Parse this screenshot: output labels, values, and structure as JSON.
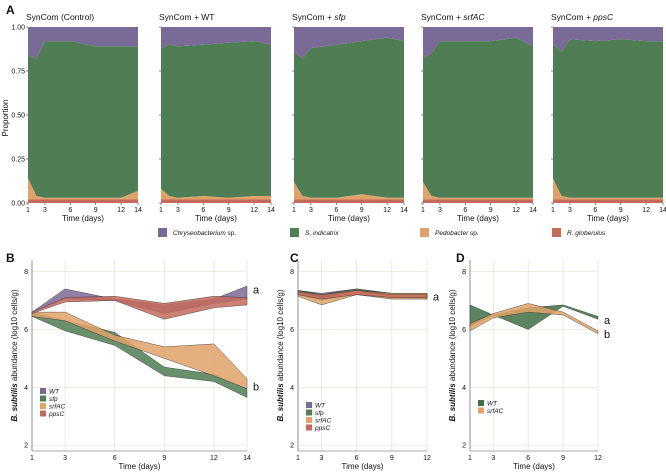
{
  "chart_data": [
    {
      "type": "area",
      "stacked": true,
      "panel_label": "A",
      "facets": [
        {
          "title_prefix": "SynCom ",
          "title_strain": "(Control)",
          "title_italic": false,
          "series": {
            "R. globerulus": [
              0.02,
              0.02,
              0.02,
              0.02,
              0.02,
              0.02,
              0.02
            ],
            "Pedobacter sp.": [
              0.12,
              0.02,
              0.01,
              0.01,
              0.01,
              0.01,
              0.05
            ],
            "S. indicatrix": [
              0.7,
              0.78,
              0.89,
              0.89,
              0.86,
              0.86,
              0.82
            ],
            "Chryseobacterium sp.": [
              0.16,
              0.18,
              0.08,
              0.08,
              0.11,
              0.11,
              0.11
            ]
          }
        },
        {
          "title_prefix": "SynCom + ",
          "title_strain": "WT",
          "title_italic": false,
          "series": {
            "R. globerulus": [
              0.02,
              0.02,
              0.02,
              0.02,
              0.02,
              0.02,
              0.02
            ],
            "Pedobacter sp.": [
              0.06,
              0.02,
              0.01,
              0.02,
              0.01,
              0.02,
              0.02
            ],
            "S. indicatrix": [
              0.8,
              0.86,
              0.86,
              0.86,
              0.88,
              0.88,
              0.86
            ],
            "Chryseobacterium sp.": [
              0.12,
              0.1,
              0.11,
              0.1,
              0.09,
              0.08,
              0.1
            ]
          }
        },
        {
          "title_prefix": "SynCom + ",
          "title_strain": "sfp",
          "title_italic": true,
          "series": {
            "R. globerulus": [
              0.02,
              0.02,
              0.02,
              0.02,
              0.02,
              0.02,
              0.02
            ],
            "Pedobacter sp.": [
              0.1,
              0.02,
              0.01,
              0.01,
              0.03,
              0.01,
              0.01
            ],
            "S. indicatrix": [
              0.74,
              0.78,
              0.85,
              0.87,
              0.87,
              0.91,
              0.89
            ],
            "Chryseobacterium sp.": [
              0.14,
              0.18,
              0.12,
              0.1,
              0.08,
              0.06,
              0.08
            ]
          }
        },
        {
          "title_prefix": "SynCom + ",
          "title_strain": "srfAC",
          "title_italic": true,
          "series": {
            "R. globerulus": [
              0.02,
              0.02,
              0.02,
              0.02,
              0.02,
              0.02,
              0.02
            ],
            "Pedobacter sp.": [
              0.1,
              0.02,
              0.01,
              0.01,
              0.01,
              0.01,
              0.01
            ],
            "S. indicatrix": [
              0.7,
              0.81,
              0.89,
              0.89,
              0.89,
              0.91,
              0.86
            ],
            "Chryseobacterium sp.": [
              0.18,
              0.15,
              0.08,
              0.08,
              0.08,
              0.06,
              0.11
            ]
          }
        },
        {
          "title_prefix": "SynCom + ",
          "title_strain": "ppsC",
          "title_italic": true,
          "series": {
            "R. globerulus": [
              0.02,
              0.02,
              0.02,
              0.02,
              0.02,
              0.02,
              0.02
            ],
            "Pedobacter sp.": [
              0.12,
              0.02,
              0.01,
              0.01,
              0.01,
              0.01,
              0.01
            ],
            "S. indicatrix": [
              0.76,
              0.82,
              0.9,
              0.89,
              0.9,
              0.89,
              0.89
            ],
            "Chryseobacterium sp.": [
              0.1,
              0.14,
              0.07,
              0.08,
              0.07,
              0.08,
              0.08
            ]
          }
        }
      ],
      "x": [
        1,
        3,
        6,
        9,
        12,
        14
      ],
      "x_series_days": [
        1,
        2,
        3,
        6,
        9,
        12,
        14
      ],
      "xlim": [
        1,
        14
      ],
      "ylim": [
        0,
        1
      ],
      "yticks": [
        "0.00",
        "0.25",
        "0.50",
        "0.75",
        "1.00"
      ],
      "xlabel": "Time (days)",
      "ylabel": "Proportion",
      "stack_order": [
        "R. globerulus",
        "Pedobacter sp.",
        "S. indicatrix",
        "Chryseobacterium sp."
      ],
      "legend": [
        {
          "name": "Chryseobacterium",
          "suffix": " sp.",
          "color": "#7a6a98"
        },
        {
          "name": "S. indicatrix",
          "suffix": "",
          "color": "#4f7d54"
        },
        {
          "name": "Pedobacter",
          "suffix": " sp.",
          "color": "#e0a26a"
        },
        {
          "name": "R. globerulus",
          "suffix": "",
          "color": "#c46a5c"
        }
      ],
      "colors": {
        "R. globerulus": "#c46a5c",
        "Pedobacter sp.": "#e0a26a",
        "S. indicatrix": "#4f7d54",
        "Chryseobacterium sp.": "#7a6a98"
      }
    },
    {
      "type": "line",
      "panel_label": "B",
      "x": [
        1,
        3,
        6,
        9,
        12,
        14
      ],
      "xticks": [
        1,
        3,
        6,
        9,
        12,
        14
      ],
      "ylim": [
        1.8,
        8.4
      ],
      "yticks": [
        2,
        4,
        6,
        8
      ],
      "xlabel": "Time (days)",
      "ylabel_bold": "B. subtilis",
      "ylabel_rest": " abundance (log10 cells/g)",
      "series": [
        {
          "name": "WT",
          "color": "#7a6a98",
          "lo": [
            6.6,
            7.05,
            7.0,
            6.55,
            6.9,
            7.05
          ],
          "hi": [
            6.6,
            7.4,
            7.05,
            6.85,
            7.05,
            7.5
          ]
        },
        {
          "name": "sfp",
          "color": "#4f7d54",
          "lo": [
            6.45,
            5.95,
            5.45,
            4.4,
            4.2,
            3.65
          ],
          "hi": [
            6.6,
            6.3,
            5.9,
            4.7,
            4.45,
            3.95
          ]
        },
        {
          "name": "srfAC",
          "color": "#e0a26a",
          "lo": [
            6.45,
            6.3,
            5.6,
            5.0,
            4.4,
            3.95
          ],
          "hi": [
            6.6,
            6.6,
            5.8,
            5.4,
            5.5,
            4.3
          ]
        },
        {
          "name": "ppsC",
          "color": "#c46a5c",
          "lo": [
            6.55,
            6.95,
            7.0,
            6.35,
            6.75,
            6.85
          ],
          "hi": [
            6.6,
            7.1,
            7.15,
            6.9,
            7.15,
            7.1
          ]
        }
      ],
      "group_letters": [
        {
          "text": "a",
          "x": 14,
          "y": 7.35
        },
        {
          "text": "b",
          "x": 14,
          "y": 4.0
        }
      ]
    },
    {
      "type": "line",
      "panel_label": "C",
      "x": [
        1,
        3,
        6,
        9,
        12
      ],
      "xticks": [
        1,
        3,
        6,
        9,
        12
      ],
      "ylim": [
        1.8,
        8.4
      ],
      "yticks": [
        2,
        4,
        6,
        8
      ],
      "xlabel": "Time (days)",
      "ylabel_bold": "B. subtilis",
      "ylabel_rest": " abundance (log10 cells/g)",
      "series": [
        {
          "name": "WT",
          "color": "#7a6a98",
          "lo": [
            7.2,
            7.05,
            7.25,
            7.1,
            7.05
          ],
          "hi": [
            7.35,
            7.25,
            7.4,
            7.25,
            7.25
          ]
        },
        {
          "name": "sfp",
          "color": "#4f7d54",
          "lo": [
            7.2,
            7.0,
            7.25,
            7.1,
            7.1
          ],
          "hi": [
            7.35,
            7.2,
            7.4,
            7.25,
            7.25
          ]
        },
        {
          "name": "srfAC",
          "color": "#e0a26a",
          "lo": [
            7.15,
            6.85,
            7.2,
            7.05,
            7.05
          ],
          "hi": [
            7.3,
            7.1,
            7.35,
            7.25,
            7.25
          ]
        },
        {
          "name": "ppsC",
          "color": "#c46a5c",
          "lo": [
            7.2,
            7.05,
            7.2,
            7.1,
            7.1
          ],
          "hi": [
            7.3,
            7.2,
            7.35,
            7.2,
            7.2
          ]
        }
      ],
      "group_letters": [
        {
          "text": "a",
          "x": 12,
          "y": 7.1
        }
      ]
    },
    {
      "type": "line",
      "panel_label": "D",
      "x": [
        1,
        3,
        6,
        9,
        12
      ],
      "xticks": [
        1,
        3,
        6,
        9,
        12
      ],
      "ylim": [
        1.8,
        8.4
      ],
      "yticks": [
        2,
        4,
        6,
        8
      ],
      "xlabel": "Time (days)",
      "ylabel_bold": "B. subtilis",
      "ylabel_rest": " abundance (log10 cells/g)",
      "series": [
        {
          "name": "WT",
          "color": "#3f6e45",
          "lo": [
            6.1,
            6.5,
            6.0,
            6.8,
            6.35
          ],
          "hi": [
            6.85,
            6.5,
            6.75,
            6.85,
            6.45
          ]
        },
        {
          "name": "srfAC",
          "color": "#e0a26a",
          "lo": [
            5.95,
            6.4,
            6.6,
            6.5,
            5.85
          ],
          "hi": [
            6.2,
            6.55,
            6.9,
            6.6,
            5.95
          ]
        }
      ],
      "group_letters": [
        {
          "text": "a",
          "x": 12,
          "y": 6.3
        },
        {
          "text": "b",
          "x": 12,
          "y": 5.8
        }
      ]
    }
  ]
}
